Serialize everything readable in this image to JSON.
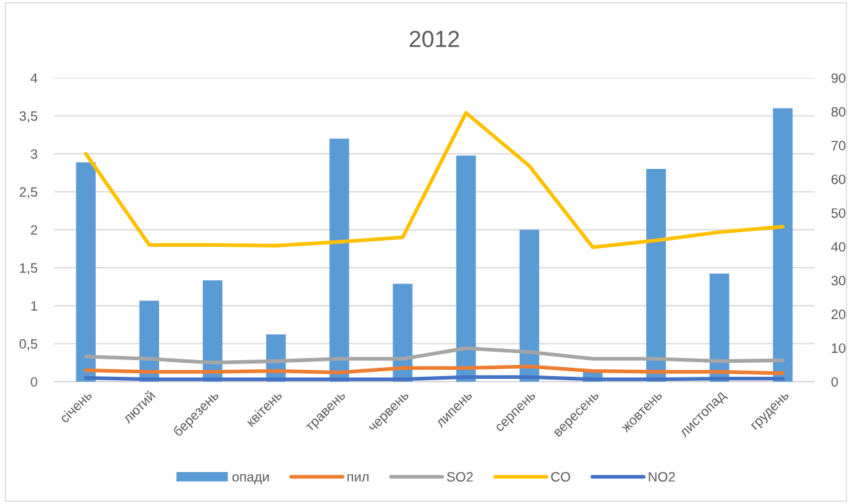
{
  "chart_data": {
    "type": "bar",
    "title": "2012",
    "categories": [
      "січень",
      "лютий",
      "березень",
      "квітень",
      "травень",
      "червень",
      "липень",
      "серпень",
      "вересень",
      "жовтень",
      "листопад",
      "грудень"
    ],
    "series": [
      {
        "name": "опади",
        "axis": "y2",
        "color": "#5b9bd5",
        "values": [
          65,
          24,
          30,
          14,
          72,
          29,
          67,
          45,
          3,
          63,
          32,
          81
        ]
      },
      {
        "name": "пил",
        "type": "line",
        "color": "#ed7d31",
        "values": [
          0.15,
          0.13,
          0.13,
          0.14,
          0.12,
          0.18,
          0.18,
          0.2,
          0.14,
          0.13,
          0.13,
          0.11
        ]
      },
      {
        "name": "SO2",
        "type": "line",
        "color": "#a5a5a5",
        "values": [
          0.33,
          0.3,
          0.25,
          0.27,
          0.3,
          0.3,
          0.44,
          0.39,
          0.3,
          0.3,
          0.27,
          0.28
        ]
      },
      {
        "name": "CO",
        "type": "line",
        "color": "#ffc000",
        "values": [
          3.0,
          1.8,
          1.8,
          1.79,
          1.84,
          1.9,
          3.54,
          2.84,
          1.77,
          1.86,
          1.97,
          2.04
        ]
      },
      {
        "name": "NO2",
        "type": "line",
        "color": "#4472c4",
        "values": [
          0.05,
          0.03,
          0.03,
          0.03,
          0.03,
          0.03,
          0.06,
          0.06,
          0.03,
          0.03,
          0.04,
          0.04
        ]
      }
    ],
    "ylim": [
      0,
      4
    ],
    "yticks": [
      0,
      {
        "value": 0.5,
        "label": "0,5"
      },
      1,
      {
        "value": 1.5,
        "label": "1,5"
      },
      2,
      {
        "value": 2.5,
        "label": "2,5"
      },
      3,
      {
        "value": 3.5,
        "label": "3,5"
      },
      4
    ],
    "y2lim": [
      0,
      90
    ],
    "y2ticks": [
      0,
      10,
      20,
      30,
      40,
      50,
      60,
      70,
      80,
      90
    ],
    "grid": "y",
    "legend": "bottom",
    "line_style": "solid"
  }
}
